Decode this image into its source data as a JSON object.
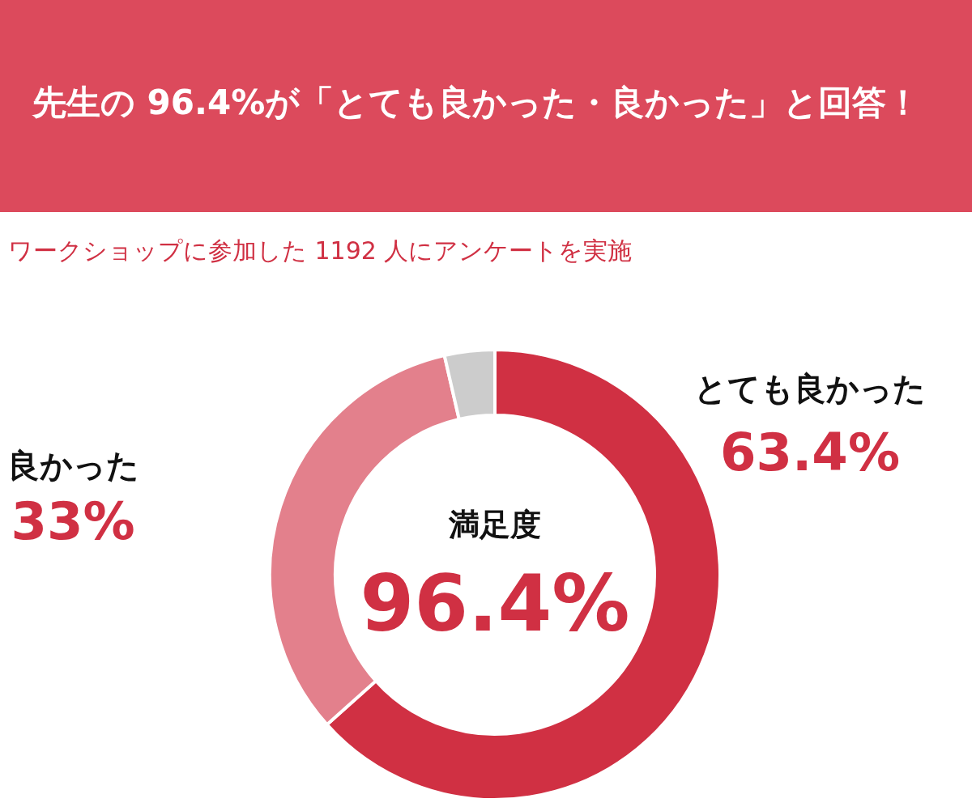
{
  "chart_data": {
    "type": "donut",
    "title": "先生の 96.4%が「とても良かった・良かった」と回答！",
    "subtitle": "ワークショップに参加した 1192 人にアンケートを実施",
    "categories": [
      "とても良かった",
      "良かった",
      null
    ],
    "values": [
      63.4,
      33,
      3.6
    ],
    "colors": [
      "#d03043",
      "#e3808c",
      "#cccccc"
    ],
    "value_labels": [
      "63.4%",
      "33%",
      null
    ],
    "annotations": [
      "満足度",
      "96.4%"
    ]
  }
}
